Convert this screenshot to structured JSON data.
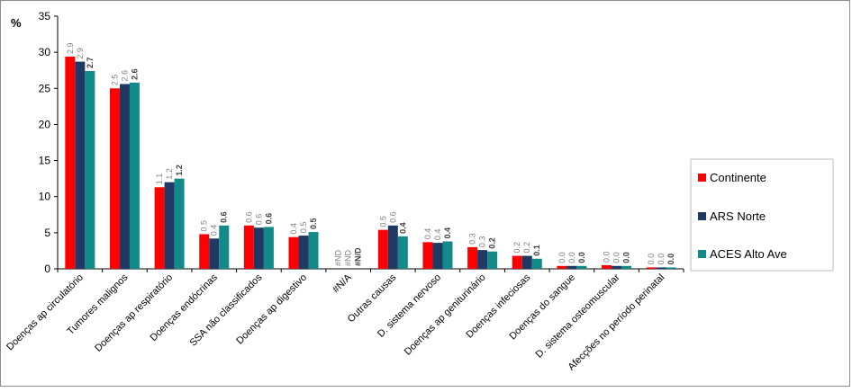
{
  "chart_data": {
    "type": "bar",
    "ylabel": "%",
    "ylim": [
      0,
      35
    ],
    "yticks": [
      0,
      5,
      10,
      15,
      20,
      25,
      30,
      35
    ],
    "grid": false,
    "legend_position": "right",
    "categories": [
      "Doenças ap circulatório",
      "Tumores malignos",
      "Doenças ap respiratório",
      "Doenças endócrinas",
      "SSA não classificados",
      "Doenças ap digestivo",
      "#N/A",
      "Outras causas",
      "D. sistema nervoso",
      "Doenças ap geniturinário",
      "Doenças infeciosas",
      "Doenças do sangue",
      "D. sistema osteomuscular",
      "Afecções no período perinatal"
    ],
    "series": [
      {
        "name": "Continente",
        "color": "#ff0000",
        "values": [
          29.4,
          25.0,
          11.3,
          4.8,
          6.0,
          4.4,
          0,
          5.4,
          3.7,
          3.0,
          1.8,
          0.4,
          0.5,
          0.2
        ],
        "labels": [
          "2.9",
          "2.5",
          "1.1",
          "0.5",
          "0.6",
          "0.4",
          "#ND",
          "0.5",
          "0.4",
          "0.3",
          "0.2",
          "0.0",
          "0.0",
          "0.0"
        ]
      },
      {
        "name": "ARS Norte",
        "color": "#1f3864",
        "values": [
          28.7,
          25.6,
          12.0,
          4.2,
          5.7,
          4.6,
          0,
          6.0,
          3.6,
          2.6,
          1.8,
          0.4,
          0.4,
          0.2
        ],
        "labels": [
          "2.9",
          "2.6",
          "1.2",
          "0.4",
          "0.6",
          "0.5",
          "#ND",
          "0.6",
          "0.4",
          "0.3",
          "0.2",
          "0.0",
          "0.0",
          "0.0"
        ]
      },
      {
        "name": "ACES Alto Ave",
        "color": "#138a8a",
        "values": [
          27.4,
          25.8,
          12.5,
          6.0,
          5.8,
          5.1,
          0,
          4.5,
          3.8,
          2.4,
          1.4,
          0.4,
          0.4,
          0.2
        ],
        "labels": [
          "2.7",
          "2.6",
          "1.2",
          "0.6",
          "0.6",
          "0.5",
          "#N/D",
          "0.4",
          "0.4",
          "0.2",
          "0.1",
          "0.0",
          "0.0",
          "0.0"
        ]
      }
    ]
  }
}
